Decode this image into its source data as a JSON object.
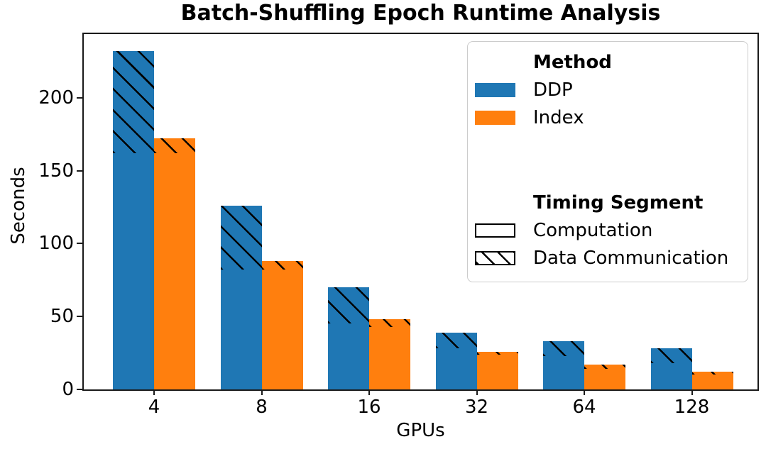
{
  "chart_data": {
    "type": "bar",
    "title": "Batch-Shuffling Epoch Runtime Analysis",
    "xlabel": "GPUs",
    "ylabel": "Seconds",
    "categories": [
      "4",
      "8",
      "16",
      "32",
      "64",
      "128"
    ],
    "yticks": [
      0,
      50,
      100,
      150,
      200
    ],
    "ylim": [
      0,
      243.6
    ],
    "grid": false,
    "bar_style": "grouped-stacked",
    "hatch_pattern": "\\\\ (backslash diagonal) on Data Communication segment",
    "hatch_color": "#000000",
    "series": [
      {
        "name": "DDP",
        "color": "#1f77b4",
        "computation": [
          162,
          82,
          45,
          28,
          23,
          18
        ],
        "data_communication": [
          70,
          44,
          25,
          11,
          10,
          10
        ],
        "totals": [
          232,
          126,
          70,
          39,
          33,
          28
        ]
      },
      {
        "name": "Index",
        "color": "#ff7f0e",
        "computation": [
          162,
          82,
          43,
          24,
          14,
          10
        ],
        "data_communication": [
          10,
          6,
          5,
          2,
          3,
          2
        ],
        "totals": [
          172,
          88,
          48,
          26,
          17,
          12
        ]
      }
    ],
    "legend": {
      "position": "upper right",
      "method_header": "Method",
      "methods": [
        {
          "label": "DDP",
          "color": "#1f77b4"
        },
        {
          "label": "Index",
          "color": "#ff7f0e"
        }
      ],
      "segment_header": "Timing Segment",
      "segments": [
        {
          "label": "Computation",
          "hatched": false
        },
        {
          "label": "Data Communication",
          "hatched": true
        }
      ]
    }
  }
}
